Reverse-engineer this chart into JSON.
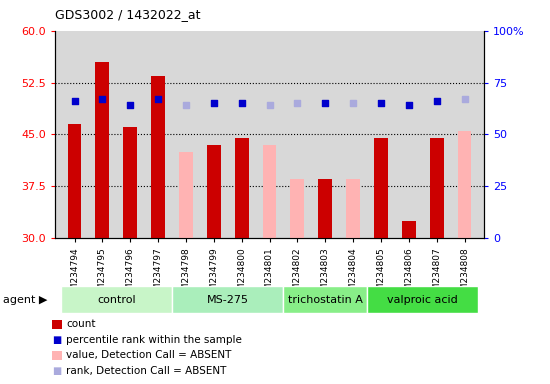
{
  "title": "GDS3002 / 1432022_at",
  "samples": [
    "GSM234794",
    "GSM234795",
    "GSM234796",
    "GSM234797",
    "GSM234798",
    "GSM234799",
    "GSM234800",
    "GSM234801",
    "GSM234802",
    "GSM234803",
    "GSM234804",
    "GSM234805",
    "GSM234806",
    "GSM234807",
    "GSM234808"
  ],
  "groups": [
    {
      "name": "control",
      "indices": [
        0,
        1,
        2,
        3
      ]
    },
    {
      "name": "MS-275",
      "indices": [
        4,
        5,
        6,
        7
      ]
    },
    {
      "name": "trichostatin A",
      "indices": [
        8,
        9,
        10
      ]
    },
    {
      "name": "valproic acid",
      "indices": [
        11,
        12,
        13,
        14
      ]
    }
  ],
  "group_colors": [
    "#c8f5c8",
    "#aaeaaa",
    "#88e088",
    "#44dd44"
  ],
  "count_values": [
    46.5,
    55.5,
    46.0,
    53.5,
    null,
    43.5,
    44.5,
    null,
    null,
    38.5,
    null,
    44.5,
    32.5,
    44.5,
    null
  ],
  "count_absent": [
    null,
    null,
    null,
    null,
    42.5,
    null,
    null,
    43.5,
    38.5,
    null,
    38.5,
    null,
    null,
    null,
    45.5
  ],
  "rank_present": [
    66,
    67,
    64,
    67,
    null,
    65,
    65,
    null,
    null,
    65,
    null,
    65,
    64,
    66,
    null
  ],
  "rank_absent": [
    null,
    null,
    null,
    null,
    64,
    null,
    null,
    64,
    65,
    null,
    65,
    null,
    null,
    null,
    67
  ],
  "ylim_left": [
    30,
    60
  ],
  "ylim_right": [
    0,
    100
  ],
  "yticks_left": [
    30,
    37.5,
    45,
    52.5,
    60
  ],
  "yticks_right": [
    0,
    25,
    50,
    75,
    100
  ],
  "ytick_right_labels": [
    "0",
    "25",
    "50",
    "75",
    "100%"
  ],
  "bar_width": 0.5,
  "color_count": "#cc0000",
  "color_count_absent": "#ffb3b3",
  "color_rank": "#0000cc",
  "color_rank_absent": "#aaaadd",
  "dot_size": 20,
  "plot_bg": "#d8d8d8",
  "tick_bg": "#d0d0d0"
}
